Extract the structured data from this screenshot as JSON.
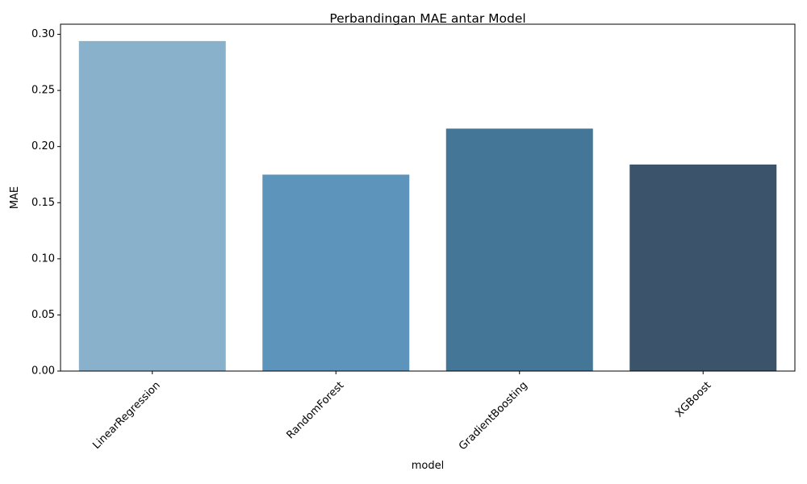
{
  "chart_data": {
    "type": "bar",
    "title": "Perbandingan MAE antar Model",
    "xlabel": "model",
    "ylabel": "MAE",
    "categories": [
      "LinearRegression",
      "RandomForest",
      "GradientBoosting",
      "XGBoost"
    ],
    "values": [
      0.294,
      0.175,
      0.216,
      0.184
    ],
    "colors": [
      "#89b1cb",
      "#5d94bb",
      "#447698",
      "#3c546b"
    ],
    "ylim": [
      0,
      0.309
    ],
    "yticks": [
      0.0,
      0.05,
      0.1,
      0.15,
      0.2,
      0.25,
      0.3
    ],
    "ytick_labels": [
      "0.00",
      "0.05",
      "0.10",
      "0.15",
      "0.20",
      "0.25",
      "0.30"
    ],
    "grid": false,
    "legend": "none",
    "xtick_rotation": 45
  }
}
